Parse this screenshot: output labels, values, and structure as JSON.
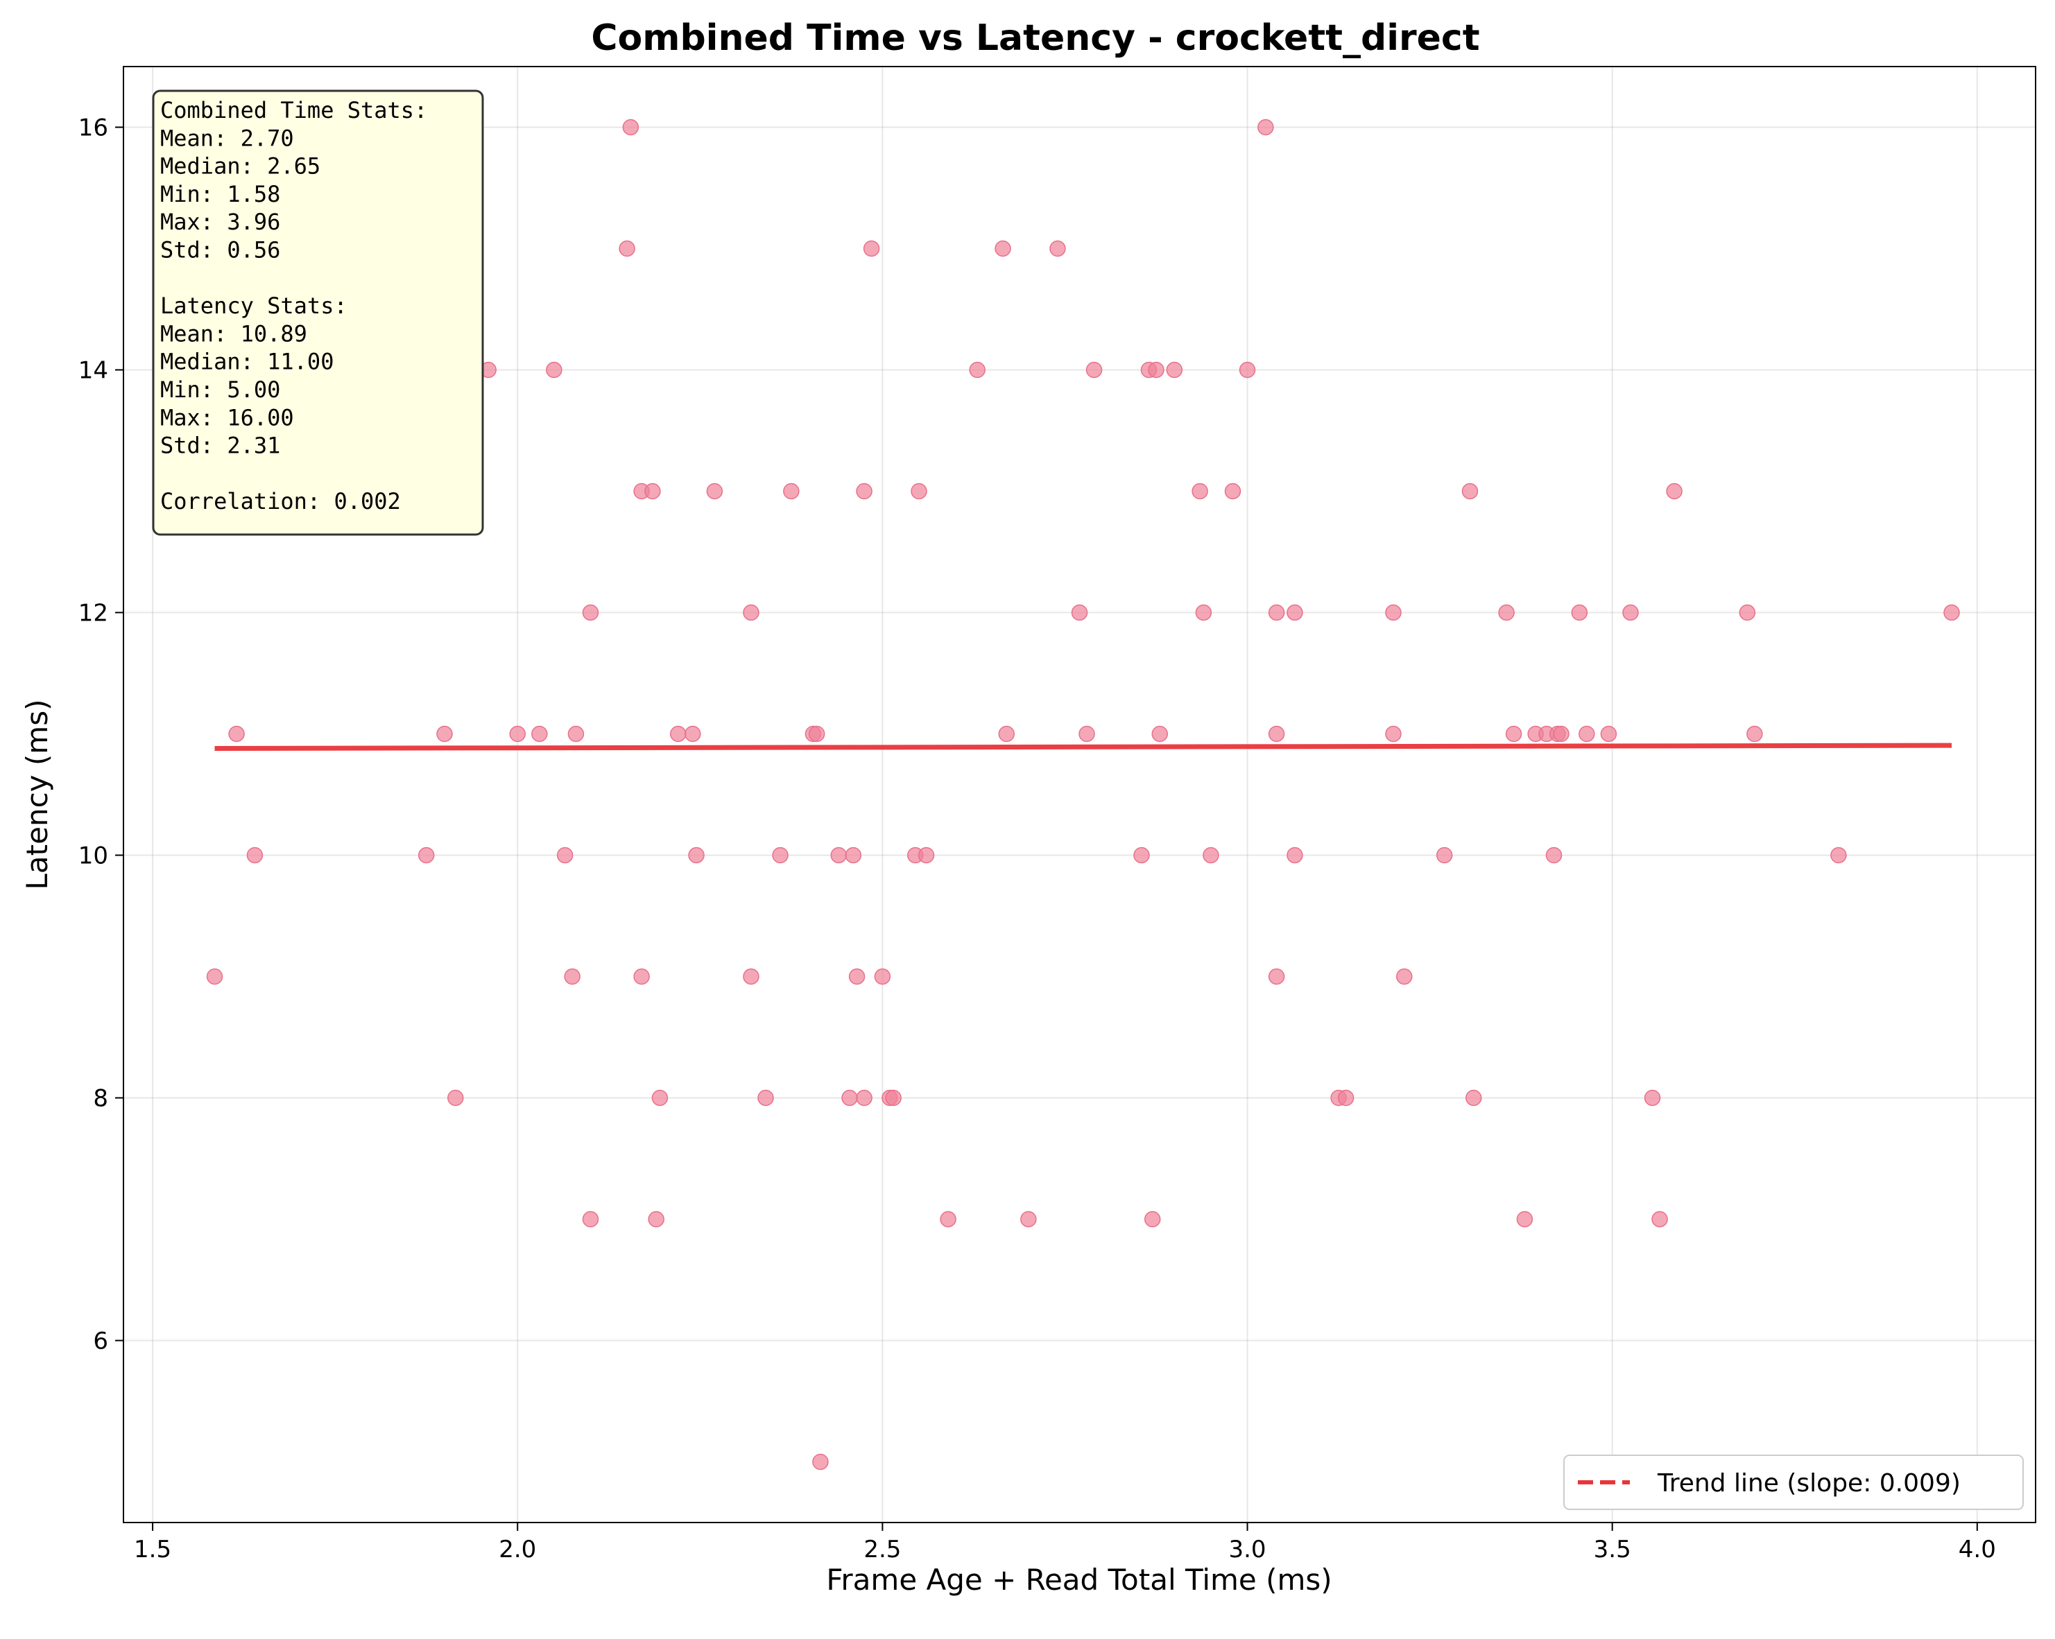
{
  "chart_data": {
    "type": "scatter",
    "title": "Combined Time vs Latency - crockett_direct",
    "xlabel": "Frame Age + Read Total Time (ms)",
    "ylabel": "Latency (ms)",
    "xlim": [
      1.46,
      4.08
    ],
    "ylim": [
      4.5,
      16.5
    ],
    "xticks": [
      1.5,
      2.0,
      2.5,
      3.0,
      3.5,
      4.0
    ],
    "xtick_labels": [
      "1.5",
      "2.0",
      "2.5",
      "3.0",
      "3.5",
      "4.0"
    ],
    "yticks": [
      6,
      8,
      10,
      12,
      14,
      16
    ],
    "ytick_labels": [
      "6",
      "8",
      "10",
      "12",
      "14",
      "16"
    ],
    "grid": true,
    "legend_position": "lower-right",
    "colors": {
      "points": "#f08198",
      "trend": "#e8353a",
      "stats_bg": "#ffffe3"
    },
    "stats_lines": [
      "Combined Time Stats:",
      "Mean: 2.70",
      "Median: 2.65",
      "Min: 1.58",
      "Max: 3.96",
      "Std: 0.56",
      "",
      "Latency Stats:",
      "Mean: 10.89",
      "Median: 11.00",
      "Min: 5.00",
      "Max: 16.00",
      "Std: 2.31",
      "",
      "Correlation: 0.002"
    ],
    "series": [
      {
        "points": [
          [
            2.155,
            16
          ],
          [
            3.025,
            16
          ],
          [
            2.15,
            15
          ],
          [
            2.485,
            15
          ],
          [
            2.665,
            15
          ],
          [
            2.74,
            15
          ],
          [
            1.79,
            14
          ],
          [
            1.96,
            14
          ],
          [
            2.05,
            14
          ],
          [
            2.63,
            14
          ],
          [
            2.79,
            14
          ],
          [
            2.865,
            14
          ],
          [
            2.875,
            14
          ],
          [
            2.9,
            14
          ],
          [
            3.0,
            14
          ],
          [
            1.935,
            13
          ],
          [
            2.17,
            13
          ],
          [
            2.185,
            13
          ],
          [
            2.27,
            13
          ],
          [
            2.375,
            13
          ],
          [
            2.475,
            13
          ],
          [
            2.55,
            13
          ],
          [
            2.935,
            13
          ],
          [
            2.98,
            13
          ],
          [
            3.305,
            13
          ],
          [
            3.585,
            13
          ],
          [
            2.1,
            12
          ],
          [
            2.32,
            12
          ],
          [
            2.77,
            12
          ],
          [
            2.94,
            12
          ],
          [
            3.04,
            12
          ],
          [
            3.065,
            12
          ],
          [
            3.2,
            12
          ],
          [
            3.355,
            12
          ],
          [
            3.455,
            12
          ],
          [
            3.525,
            12
          ],
          [
            3.685,
            12
          ],
          [
            3.965,
            12
          ],
          [
            1.615,
            11
          ],
          [
            1.9,
            11
          ],
          [
            2.0,
            11
          ],
          [
            2.03,
            11
          ],
          [
            2.08,
            11
          ],
          [
            2.22,
            11
          ],
          [
            2.24,
            11
          ],
          [
            2.405,
            11
          ],
          [
            2.41,
            11
          ],
          [
            2.67,
            11
          ],
          [
            2.78,
            11
          ],
          [
            2.88,
            11
          ],
          [
            3.04,
            11
          ],
          [
            3.2,
            11
          ],
          [
            3.365,
            11
          ],
          [
            3.395,
            11
          ],
          [
            3.41,
            11
          ],
          [
            3.425,
            11
          ],
          [
            3.43,
            11
          ],
          [
            3.465,
            11
          ],
          [
            3.495,
            11
          ],
          [
            3.695,
            11
          ],
          [
            1.64,
            10
          ],
          [
            1.875,
            10
          ],
          [
            2.065,
            10
          ],
          [
            2.245,
            10
          ],
          [
            2.36,
            10
          ],
          [
            2.44,
            10
          ],
          [
            2.46,
            10
          ],
          [
            2.545,
            10
          ],
          [
            2.56,
            10
          ],
          [
            2.855,
            10
          ],
          [
            2.95,
            10
          ],
          [
            3.065,
            10
          ],
          [
            3.27,
            10
          ],
          [
            3.42,
            10
          ],
          [
            3.81,
            10
          ],
          [
            1.585,
            9
          ],
          [
            2.075,
            9
          ],
          [
            2.17,
            9
          ],
          [
            2.32,
            9
          ],
          [
            2.465,
            9
          ],
          [
            2.5,
            9
          ],
          [
            3.04,
            9
          ],
          [
            3.215,
            9
          ],
          [
            1.915,
            8
          ],
          [
            2.195,
            8
          ],
          [
            2.34,
            8
          ],
          [
            2.455,
            8
          ],
          [
            2.475,
            8
          ],
          [
            2.51,
            8
          ],
          [
            2.515,
            8
          ],
          [
            3.125,
            8
          ],
          [
            3.135,
            8
          ],
          [
            3.31,
            8
          ],
          [
            3.555,
            8
          ],
          [
            2.1,
            7
          ],
          [
            2.19,
            7
          ],
          [
            2.59,
            7
          ],
          [
            2.7,
            7
          ],
          [
            2.87,
            7
          ],
          [
            3.38,
            7
          ],
          [
            3.565,
            7
          ],
          [
            2.415,
            5
          ]
        ]
      }
    ],
    "trend": {
      "label": "Trend line (slope: 0.009)",
      "slope": 0.009,
      "x_range": [
        1.585,
        3.965
      ],
      "y_range": [
        10.88,
        10.905
      ]
    }
  }
}
